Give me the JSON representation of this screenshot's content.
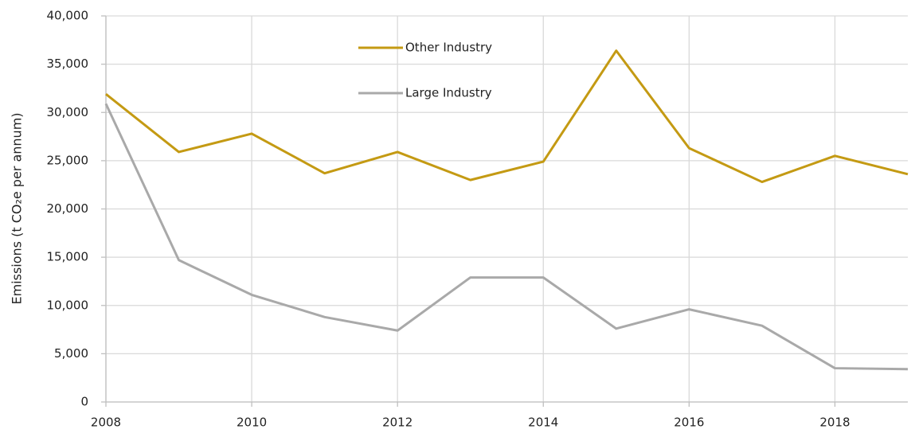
{
  "chart_data": {
    "type": "line",
    "y_label": "Emissions (t CO₂e per annum)",
    "x": [
      2008,
      2009,
      2010,
      2011,
      2012,
      2013,
      2014,
      2015,
      2016,
      2017,
      2018,
      2019
    ],
    "series": [
      {
        "name": "Other Industry",
        "color": "#c49a13",
        "values": [
          31900,
          25900,
          27800,
          23700,
          25900,
          23000,
          24900,
          36400,
          26300,
          22800,
          25500,
          23600
        ]
      },
      {
        "name": "Large Industry",
        "color": "#a9a9a9",
        "values": [
          30900,
          14700,
          11100,
          8800,
          7400,
          12900,
          12900,
          7600,
          9600,
          7900,
          3500,
          3400
        ]
      }
    ],
    "xlim": [
      2008,
      2019
    ],
    "xticks": [
      2008,
      2010,
      2012,
      2014,
      2016,
      2018
    ],
    "ylim": [
      0,
      40000
    ],
    "yticks": [
      0,
      {
        "value": 5000,
        "label": "5,000"
      },
      {
        "value": 10000,
        "label": "10,000"
      },
      {
        "value": 15000,
        "label": "15,000"
      },
      {
        "value": 20000,
        "label": "20,000"
      },
      {
        "value": 25000,
        "label": "25,000"
      },
      {
        "value": 30000,
        "label": "30,000"
      },
      {
        "value": 35000,
        "label": "35,000"
      },
      {
        "value": 40000,
        "label": "40,000"
      }
    ],
    "grid": true,
    "legend": "top-center"
  }
}
